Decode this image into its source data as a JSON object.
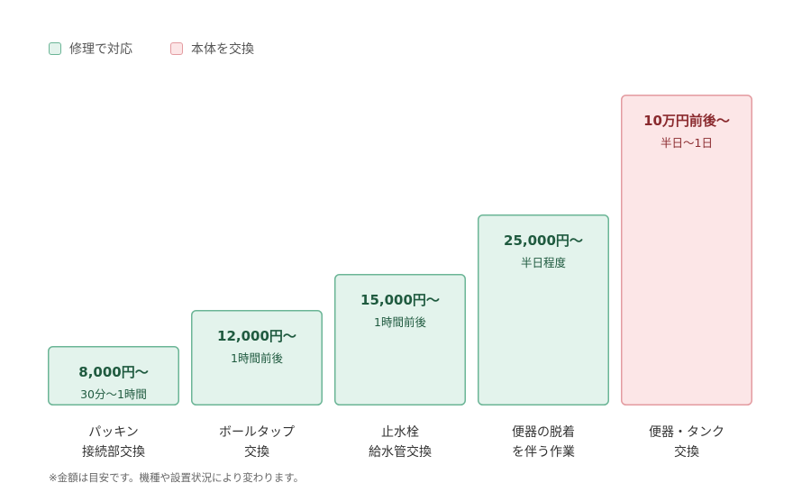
{
  "legend": {
    "repair_label": "修理で対応",
    "replace_label": "本体を交換"
  },
  "footnote": "※金額は目安です。機種や設置状況により変わります。",
  "colors": {
    "repair_fill": "#e3f3ec",
    "repair_stroke": "#6bb596",
    "repair_text": "#1f5a3f",
    "replace_fill": "#fce6e7",
    "replace_stroke": "#e39ba0",
    "replace_text": "#8a2a2e"
  },
  "chart_data": {
    "type": "bar",
    "categories": [
      [
        "パッキン",
        "接続部交換"
      ],
      [
        "ボールタップ",
        "交換"
      ],
      [
        "止水栓",
        "給水管交換"
      ],
      [
        "便器の脱着",
        "を伴う作業"
      ],
      [
        "便器・タンク",
        "交換"
      ]
    ],
    "values": [
      8000,
      12000,
      15000,
      25000,
      100000
    ],
    "price_labels": [
      "8,000円〜",
      "12,000円〜",
      "15,000円〜",
      "25,000円〜",
      "10万円前後〜"
    ],
    "duration_labels": [
      "30分〜1時間",
      "1時間前後",
      "1時間前後",
      "半日程度",
      "半日〜1日"
    ],
    "groups": [
      "repair",
      "repair",
      "repair",
      "repair",
      "replace"
    ],
    "grid": false,
    "legend_position": "top-left"
  }
}
